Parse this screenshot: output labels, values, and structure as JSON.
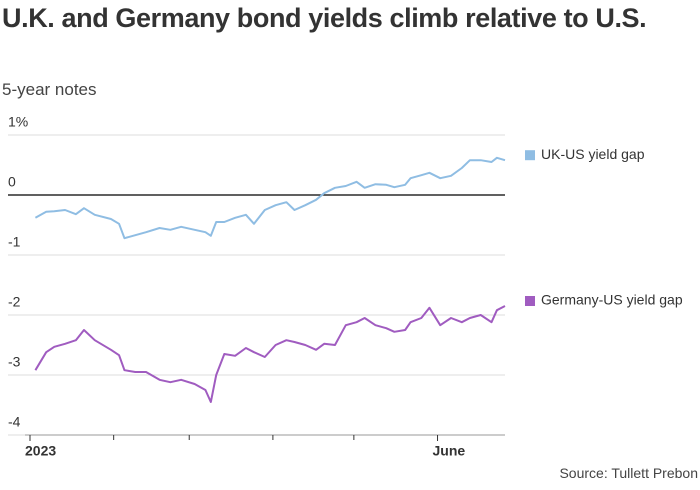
{
  "chart_data": {
    "type": "line",
    "title": "U.K. and Germany bond yields climb relative to U.S.",
    "subtitle": "5-year notes",
    "source": "Source: Tullett Prebon",
    "x": [
      2,
      6,
      9,
      13,
      17,
      20,
      24,
      30,
      33,
      35,
      39,
      43,
      48,
      52,
      56,
      61,
      65,
      67,
      69,
      72,
      76,
      80,
      83,
      87,
      91,
      95,
      98,
      102,
      106,
      109,
      113,
      117,
      121,
      124,
      128,
      132,
      135,
      139,
      141,
      145,
      148,
      152,
      156,
      160,
      163,
      167,
      171,
      173,
      176
    ],
    "series": [
      {
        "name": "UK-US yield gap",
        "color": "#8fbde3",
        "values": [
          -0.38,
          -0.28,
          -0.27,
          -0.25,
          -0.32,
          -0.22,
          -0.33,
          -0.4,
          -0.48,
          -0.72,
          -0.67,
          -0.62,
          -0.55,
          -0.58,
          -0.53,
          -0.58,
          -0.62,
          -0.68,
          -0.45,
          -0.45,
          -0.38,
          -0.33,
          -0.48,
          -0.25,
          -0.17,
          -0.12,
          -0.25,
          -0.17,
          -0.08,
          0.03,
          0.12,
          0.15,
          0.22,
          0.12,
          0.18,
          0.17,
          0.13,
          0.17,
          0.28,
          0.33,
          0.37,
          0.28,
          0.32,
          0.45,
          0.58,
          0.58,
          0.55,
          0.62,
          0.58
        ]
      },
      {
        "name": "Germany-US yield gap",
        "color": "#a05cc0",
        "values": [
          -2.92,
          -2.62,
          -2.53,
          -2.48,
          -2.42,
          -2.25,
          -2.42,
          -2.58,
          -2.67,
          -2.92,
          -2.95,
          -2.95,
          -3.08,
          -3.12,
          -3.08,
          -3.15,
          -3.25,
          -3.45,
          -3.0,
          -2.65,
          -2.68,
          -2.55,
          -2.62,
          -2.7,
          -2.5,
          -2.42,
          -2.45,
          -2.5,
          -2.58,
          -2.48,
          -2.5,
          -2.17,
          -2.12,
          -2.05,
          -2.17,
          -2.22,
          -2.28,
          -2.25,
          -2.12,
          -2.05,
          -1.88,
          -2.17,
          -2.05,
          -2.12,
          -2.05,
          -2.0,
          -2.12,
          -1.92,
          -1.85
        ]
      }
    ],
    "xlim": [
      0,
      176
    ],
    "xticks": [
      {
        "value": 0,
        "label": "2023"
      },
      {
        "value": 151,
        "label": "June"
      }
    ],
    "xminor_ticks": [
      31,
      59,
      90,
      120
    ],
    "ylim": [
      -4,
      1
    ],
    "yticks": [
      {
        "value": 1,
        "label": "1%"
      },
      0,
      -1,
      -2,
      -3,
      -4
    ],
    "grid": true,
    "legend": "right"
  }
}
